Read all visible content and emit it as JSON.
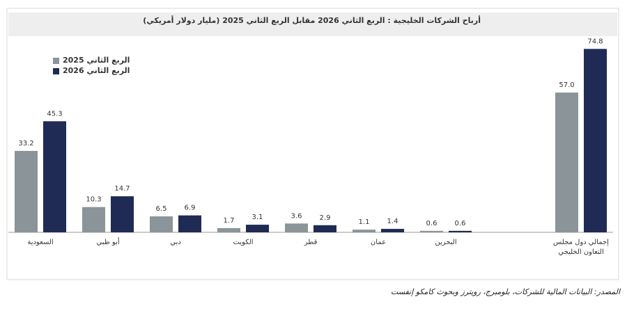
{
  "chart_data": {
    "type": "bar",
    "title": "أرباح الشركات الخليجية : الربع الثاني 2026 مقابل الربع الثاني 2025 (مليار دولار أمريكي)",
    "source": "المصدر: البيانات المالية للشركات، بلومبرج، رويترز وبحوث كامكو إنفست",
    "categories": [
      "السعودية",
      "أبو ظبي",
      "دبي",
      "الكويت",
      "قطر",
      "عمان",
      "البحرين",
      "إجمالي دول مجلس التعاون الخليجي"
    ],
    "series": [
      {
        "name": "الربع الثاني 2025",
        "color": "#8a9499",
        "values": [
          33.2,
          10.3,
          6.5,
          1.7,
          3.6,
          1.1,
          0.6,
          57
        ],
        "value_labels": [
          "33.2",
          "10.3",
          "6.5",
          "1.7",
          "3.6",
          "1.1",
          "0.6",
          "57.0"
        ]
      },
      {
        "name": "الربع الثاني 2026",
        "color": "#1f2a55",
        "values": [
          45.3,
          14.7,
          6.9,
          3.1,
          2.9,
          1.4,
          0.6,
          74.8
        ],
        "value_labels": [
          "45.3",
          "14.7",
          "6.9",
          "3.1",
          "2.9",
          "1.4",
          "0.6",
          "74.8"
        ]
      }
    ],
    "ylim": [
      0,
      80
    ]
  }
}
